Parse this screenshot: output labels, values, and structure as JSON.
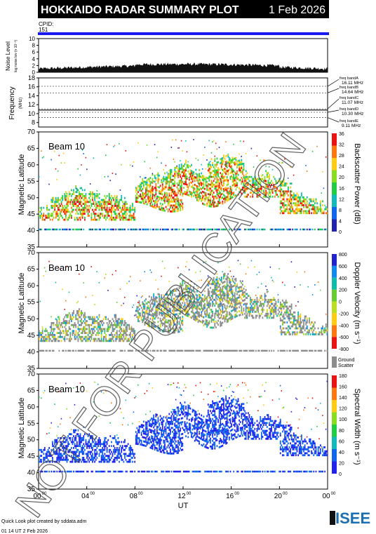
{
  "header": {
    "title": "HOKKAIDO RADAR SUMMARY PLOT",
    "date": "1 Feb 2026"
  },
  "cpid": {
    "label": "CPID:",
    "value": "151"
  },
  "noise": {
    "ylabel": "Noise Level",
    "ysub": "log noise lev (v 10⁻²)",
    "ticks": [
      "0",
      "2",
      "4",
      "6",
      "8",
      "10"
    ]
  },
  "frequency": {
    "ylabel": "Frequency",
    "ysub": "(MHz)",
    "ticks": [
      "8",
      "10",
      "12",
      "14",
      "16",
      "18"
    ],
    "bands": [
      {
        "label": "freq bandA",
        "value": "16.11 MHz"
      },
      {
        "label": "freq bandB",
        "value": "14.64 MHz"
      },
      {
        "label": "freq bandC",
        "value": "11.07 MHz"
      },
      {
        "label": "freq bandD",
        "value": "10.30 MHz"
      },
      {
        "label": "freq bandE",
        "value": "9.11 MHz"
      }
    ]
  },
  "panels": [
    {
      "beam": "Beam 10",
      "ylabel": "Magnetic Latitude",
      "cbar_label": "Backscatter Power (dB)",
      "cbar_ticks": [
        "0",
        "4",
        "8",
        "12",
        "16",
        "20",
        "24",
        "28",
        "32",
        "36"
      ]
    },
    {
      "beam": "Beam 10",
      "ylabel": "Magnetic Latitude",
      "cbar_label": "Doppler Velocity (m s⁻¹)",
      "cbar_ticks": [
        "-800",
        "-600",
        "-400",
        "-200",
        "0",
        "200",
        "400",
        "600",
        "800"
      ],
      "ground_label": "Ground",
      "ground_label2": "Scatter"
    },
    {
      "beam": "Beam 10",
      "ylabel": "Magnetic Latitude",
      "cbar_label": "Spectral Width (m s⁻¹)",
      "cbar_ticks": [
        "0",
        "20",
        "40",
        "60",
        "80",
        "100",
        "120",
        "140",
        "160",
        "180"
      ]
    }
  ],
  "lat_ticks": [
    "35",
    "40",
    "45",
    "50",
    "55",
    "60",
    "65",
    "70"
  ],
  "x_ticks": [
    {
      "h": "00",
      "m": "00"
    },
    {
      "h": "04",
      "m": "00"
    },
    {
      "h": "08",
      "m": "00"
    },
    {
      "h": "12",
      "m": "00"
    },
    {
      "h": "16",
      "m": "00"
    },
    {
      "h": "20",
      "m": "00"
    },
    {
      "h": "00",
      "m": "00"
    }
  ],
  "xlabel": "UT",
  "footer": {
    "line1": "Quick Look plot created by sddata.adm",
    "line2": "01 14 UT  2 Feb 2026",
    "logo": "ISEE"
  },
  "watermark": "NOT FOR PUBLICATION",
  "colors": {
    "ground": "#8c8c8c",
    "power": [
      "#ee1111",
      "#ff7711",
      "#ffcc11",
      "#88dd22",
      "#22cc44",
      "#11bbbb",
      "#1166ee",
      "#2222aa"
    ],
    "velocity": [
      "#ee1111",
      "#ff7711",
      "#ffcc11",
      "#bbdd22",
      "#66cc33",
      "#11bbaa",
      "#1188ee",
      "#2222cc"
    ],
    "width": [
      "#2222ee",
      "#1166ee",
      "#11bbbb",
      "#22cc44",
      "#88dd22",
      "#ffcc11",
      "#ff7711",
      "#ee1111"
    ]
  },
  "chart_data": {
    "type": "heatmap",
    "x_range_hours": [
      0,
      24
    ],
    "lat_range": [
      35,
      70
    ],
    "noise_range": [
      0,
      10
    ],
    "freq_range": [
      7,
      18
    ],
    "freq_band_lines_mhz": [
      16.11,
      14.64,
      11.07,
      10.3,
      9.11
    ]
  }
}
